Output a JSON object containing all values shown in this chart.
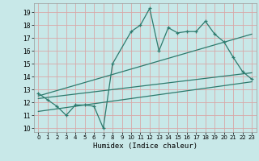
{
  "title": "",
  "xlabel": "Humidex (Indice chaleur)",
  "bg_color": "#c8e8e8",
  "grid_color": "#d8a8a8",
  "line_color": "#2d7b6e",
  "ylim": [
    9.7,
    19.7
  ],
  "xlim": [
    -0.5,
    23.5
  ],
  "yticks": [
    10,
    11,
    12,
    13,
    14,
    15,
    16,
    17,
    18,
    19
  ],
  "xticks": [
    0,
    1,
    2,
    3,
    4,
    5,
    6,
    7,
    8,
    9,
    10,
    11,
    12,
    13,
    14,
    15,
    16,
    17,
    18,
    19,
    20,
    21,
    22,
    23
  ],
  "main_x": [
    0,
    1,
    2,
    3,
    4,
    5,
    6,
    7,
    8,
    10,
    11,
    12,
    13,
    14,
    15,
    16,
    17,
    18,
    19,
    20,
    21,
    22,
    23
  ],
  "main_y": [
    12.7,
    12.2,
    11.7,
    11.0,
    11.8,
    11.8,
    11.7,
    10.0,
    15.0,
    17.5,
    18.0,
    19.3,
    16.0,
    17.8,
    17.4,
    17.5,
    17.5,
    18.3,
    17.3,
    16.7,
    15.5,
    14.4,
    13.8
  ],
  "trend1_x": [
    0,
    23
  ],
  "trend1_y": [
    12.5,
    17.3
  ],
  "trend2_x": [
    0,
    23
  ],
  "trend2_y": [
    11.3,
    13.6
  ],
  "trend3_x": [
    0,
    23
  ],
  "trend3_y": [
    12.3,
    14.3
  ]
}
